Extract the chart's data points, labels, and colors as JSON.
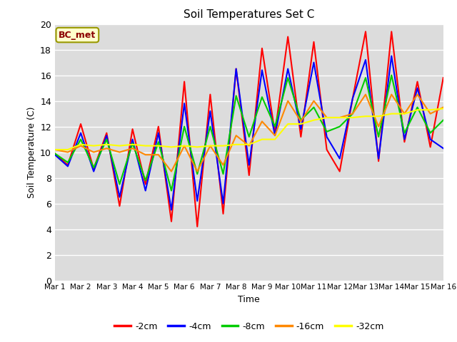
{
  "title": "Soil Temperatures Set C",
  "xlabel": "Time",
  "ylabel": "Soil Temperature (C)",
  "ylim": [
    0,
    20
  ],
  "xlim": [
    0,
    15
  ],
  "annotation": "BC_met",
  "legend": [
    "-2cm",
    "-4cm",
    "-8cm",
    "-16cm",
    "-32cm"
  ],
  "colors": [
    "#ff0000",
    "#0000ff",
    "#00cc00",
    "#ff8800",
    "#ffff00"
  ],
  "axes_bg": "#dcdcdc",
  "fig_bg": "#ffffff",
  "xtick_labels": [
    "Mar 1",
    "Mar 2",
    "Mar 3",
    "Mar 4",
    "Mar 5",
    "Mar 6",
    "Mar 7",
    "Mar 8",
    "Mar 9",
    "Mar 10",
    "Mar 11",
    "Mar 12",
    "Mar 13",
    "Mar 14",
    "Mar 15",
    "Mar 16"
  ],
  "t": [
    0,
    0.5,
    1,
    1.5,
    2,
    2.5,
    3,
    3.5,
    4,
    4.5,
    5,
    5.5,
    6,
    6.5,
    7,
    7.5,
    8,
    8.5,
    9,
    9.5,
    10,
    10.5,
    11,
    11.5,
    12,
    12.5,
    13,
    13.5,
    14,
    14.5,
    15
  ],
  "neg2cm": [
    9.9,
    9.0,
    12.2,
    8.7,
    11.5,
    5.8,
    11.8,
    7.5,
    12.0,
    4.6,
    15.5,
    4.2,
    14.5,
    5.2,
    16.5,
    8.2,
    18.1,
    11.5,
    19.0,
    11.2,
    18.6,
    10.2,
    8.5,
    14.2,
    19.4,
    9.3,
    19.4,
    10.8,
    15.5,
    10.4,
    15.8
  ],
  "neg4cm": [
    9.8,
    8.9,
    11.5,
    8.5,
    11.3,
    6.5,
    11.0,
    7.0,
    11.5,
    5.5,
    13.8,
    6.2,
    13.2,
    6.0,
    16.5,
    9.0,
    16.4,
    11.3,
    16.5,
    11.8,
    17.0,
    11.2,
    9.5,
    14.2,
    17.2,
    9.5,
    17.5,
    11.0,
    15.0,
    11.0,
    10.3
  ],
  "neg8cm": [
    9.9,
    9.2,
    11.0,
    8.8,
    11.0,
    7.5,
    10.7,
    7.8,
    10.8,
    7.0,
    12.0,
    8.3,
    12.0,
    8.3,
    14.4,
    11.2,
    14.3,
    12.0,
    15.8,
    12.5,
    13.5,
    11.6,
    12.0,
    13.0,
    15.8,
    11.2,
    16.0,
    11.5,
    13.5,
    11.5,
    12.5
  ],
  "neg16cm": [
    10.2,
    10.0,
    10.5,
    10.0,
    10.3,
    10.0,
    10.3,
    9.8,
    9.8,
    8.5,
    10.5,
    8.5,
    10.5,
    9.0,
    11.3,
    10.5,
    12.4,
    11.3,
    14.0,
    12.4,
    14.0,
    12.7,
    12.7,
    13.0,
    14.5,
    12.0,
    14.5,
    13.0,
    14.5,
    13.0,
    13.5
  ],
  "neg32cm": [
    10.2,
    10.2,
    10.6,
    10.5,
    10.6,
    10.5,
    10.6,
    10.5,
    10.5,
    10.4,
    10.5,
    10.4,
    10.5,
    10.5,
    10.6,
    10.6,
    11.0,
    11.0,
    12.2,
    12.2,
    12.5,
    12.7,
    12.7,
    12.7,
    12.8,
    12.8,
    13.0,
    13.0,
    13.3,
    13.3,
    13.4
  ]
}
